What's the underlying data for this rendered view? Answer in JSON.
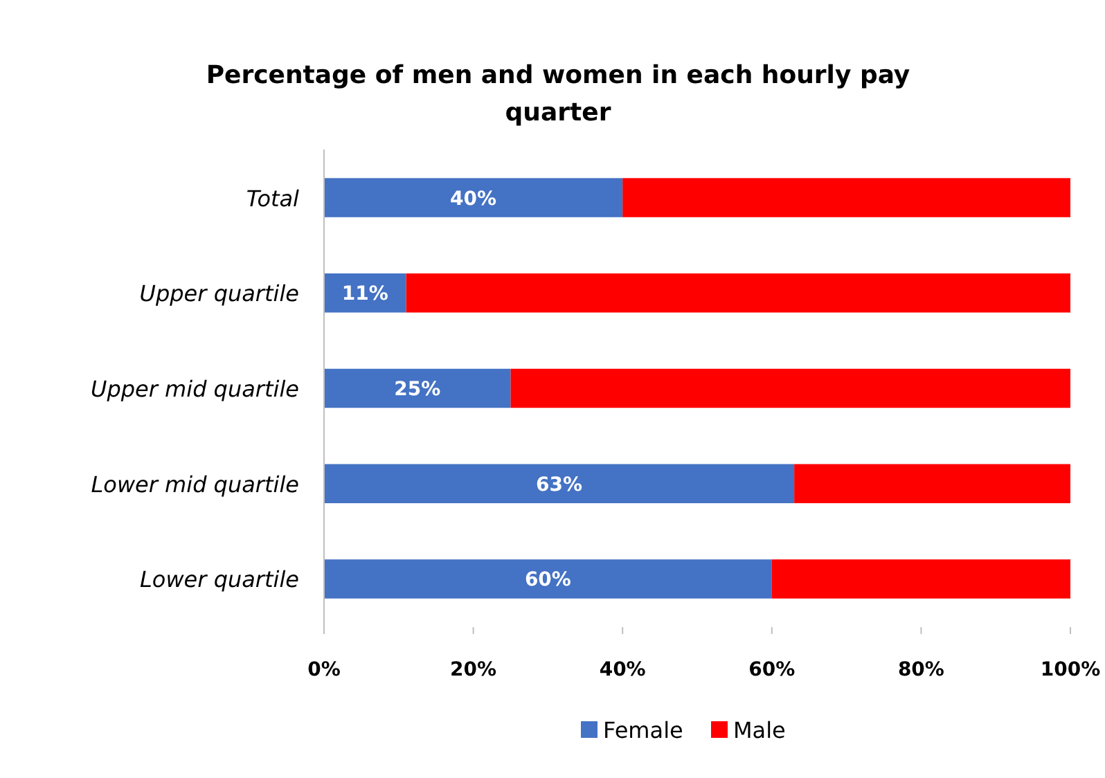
{
  "chart_data": {
    "type": "bar",
    "orientation": "horizontal",
    "stacked": true,
    "title": "Percentage of men and women in each hourly pay quarter",
    "categories": [
      "Total",
      "Upper quartile",
      "Upper mid quartile",
      "Lower mid quartile",
      "Lower quartile"
    ],
    "series": [
      {
        "name": "Female",
        "color": "#4472c4",
        "values": [
          40,
          11,
          25,
          63,
          60
        ],
        "value_labels": [
          "40%",
          "11%",
          "25%",
          "63%",
          "60%"
        ]
      },
      {
        "name": "Male",
        "color": "#ff0000",
        "values": [
          60,
          89,
          75,
          37,
          40
        ]
      }
    ],
    "xlim": [
      0,
      100
    ],
    "xticks": [
      {
        "value": 0,
        "label": "0%"
      },
      {
        "value": 20,
        "label": "20%"
      },
      {
        "value": 40,
        "label": "40%"
      },
      {
        "value": 60,
        "label": "60%"
      },
      {
        "value": 80,
        "label": "80%"
      },
      {
        "value": 100,
        "label": "100%"
      }
    ],
    "grid": false,
    "legend": "bottom"
  }
}
